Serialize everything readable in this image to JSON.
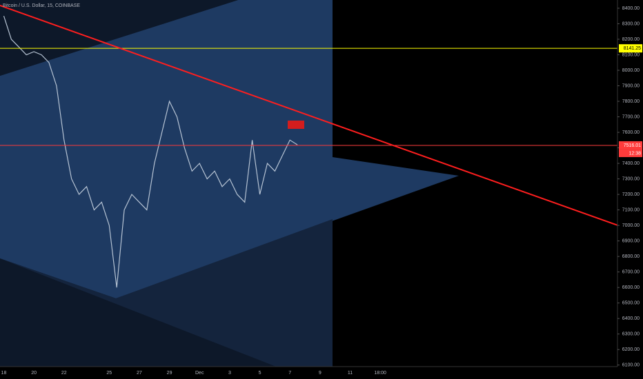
{
  "chart_data": {
    "type": "line",
    "title": "Bitcoin / U.S. Dollar, 15, COINBASE",
    "color": "#b7c4d4",
    "categories": [
      "18",
      null,
      null,
      null,
      "20",
      null,
      null,
      null,
      "22",
      null,
      null,
      null,
      null,
      null,
      "25",
      null,
      null,
      null,
      "27",
      null,
      null,
      null,
      "29",
      null,
      null,
      null,
      "Dec",
      null,
      null,
      null,
      "3",
      null,
      null,
      null,
      "5",
      null,
      null,
      null,
      "7",
      null,
      null,
      null,
      "9",
      null,
      null,
      null,
      "11",
      null,
      null,
      null,
      "18:00",
      null,
      null,
      null,
      null,
      null,
      null,
      null,
      null,
      null,
      null,
      null,
      null,
      null,
      null,
      null,
      null,
      null,
      null,
      null,
      null,
      null,
      null,
      null,
      null,
      null,
      null,
      null,
      null,
      null,
      null,
      null
    ],
    "values": [
      8350,
      8200,
      8150,
      8100,
      8120,
      8100,
      8050,
      7900,
      7550,
      7300,
      7200,
      7250,
      7100,
      7150,
      7000,
      6600,
      7100,
      7200,
      7150,
      7100,
      7400,
      7600,
      7800,
      7700,
      7500,
      7350,
      7400,
      7300,
      7350,
      7250,
      7300,
      7200,
      7150,
      7550,
      7200,
      7400,
      7350,
      7450,
      7550,
      7520,
      null,
      null,
      null,
      null,
      null,
      null,
      null,
      null,
      null,
      null,
      null,
      null,
      null,
      null,
      null,
      null,
      null,
      null,
      null,
      null,
      null,
      null,
      null,
      null,
      null,
      null,
      null,
      null,
      null,
      null,
      null,
      null,
      null,
      null,
      null,
      null,
      null,
      null,
      null,
      null,
      null,
      null
    ],
    "ylim": [
      6090,
      8453
    ],
    "yticks": [
      {
        "value": 6100,
        "label": "6100.00"
      },
      {
        "value": 6200,
        "label": "6200.00"
      },
      {
        "value": 6300,
        "label": "6300.00"
      },
      {
        "value": 6400,
        "label": "6400.00"
      },
      {
        "value": 6500,
        "label": "6500.00"
      },
      {
        "value": 6600,
        "label": "6600.00"
      },
      {
        "value": 6700,
        "label": "6700.00"
      },
      {
        "value": 6800,
        "label": "6800.00"
      },
      {
        "value": 6900,
        "label": "6900.00"
      },
      {
        "value": 7000,
        "label": "7000.00"
      },
      {
        "value": 7100,
        "label": "7100.00"
      },
      {
        "value": 7200,
        "label": "7200.00"
      },
      {
        "value": 7300,
        "label": "7300.00"
      },
      {
        "value": 7400,
        "label": "7400.00"
      },
      {
        "value": 7500,
        "label": "7500.00"
      },
      {
        "value": 7600,
        "label": "7600.00"
      },
      {
        "value": 7700,
        "label": "7700.00"
      },
      {
        "value": 7800,
        "label": "7800.00"
      },
      {
        "value": 7900,
        "label": "7900.00"
      },
      {
        "value": 8000,
        "label": "8000.00"
      },
      {
        "value": 8100,
        "label": "8100.00"
      },
      {
        "value": 8200,
        "label": "8200.00"
      },
      {
        "value": 8300,
        "label": "8300.00"
      },
      {
        "value": 8400,
        "label": "8400.00"
      }
    ],
    "price_lines": [
      {
        "value": 8141.25,
        "color": "#ffff00"
      },
      {
        "value": 7516.01,
        "color": "#ff3b3b",
        "countdown": "12:38"
      }
    ]
  }
}
